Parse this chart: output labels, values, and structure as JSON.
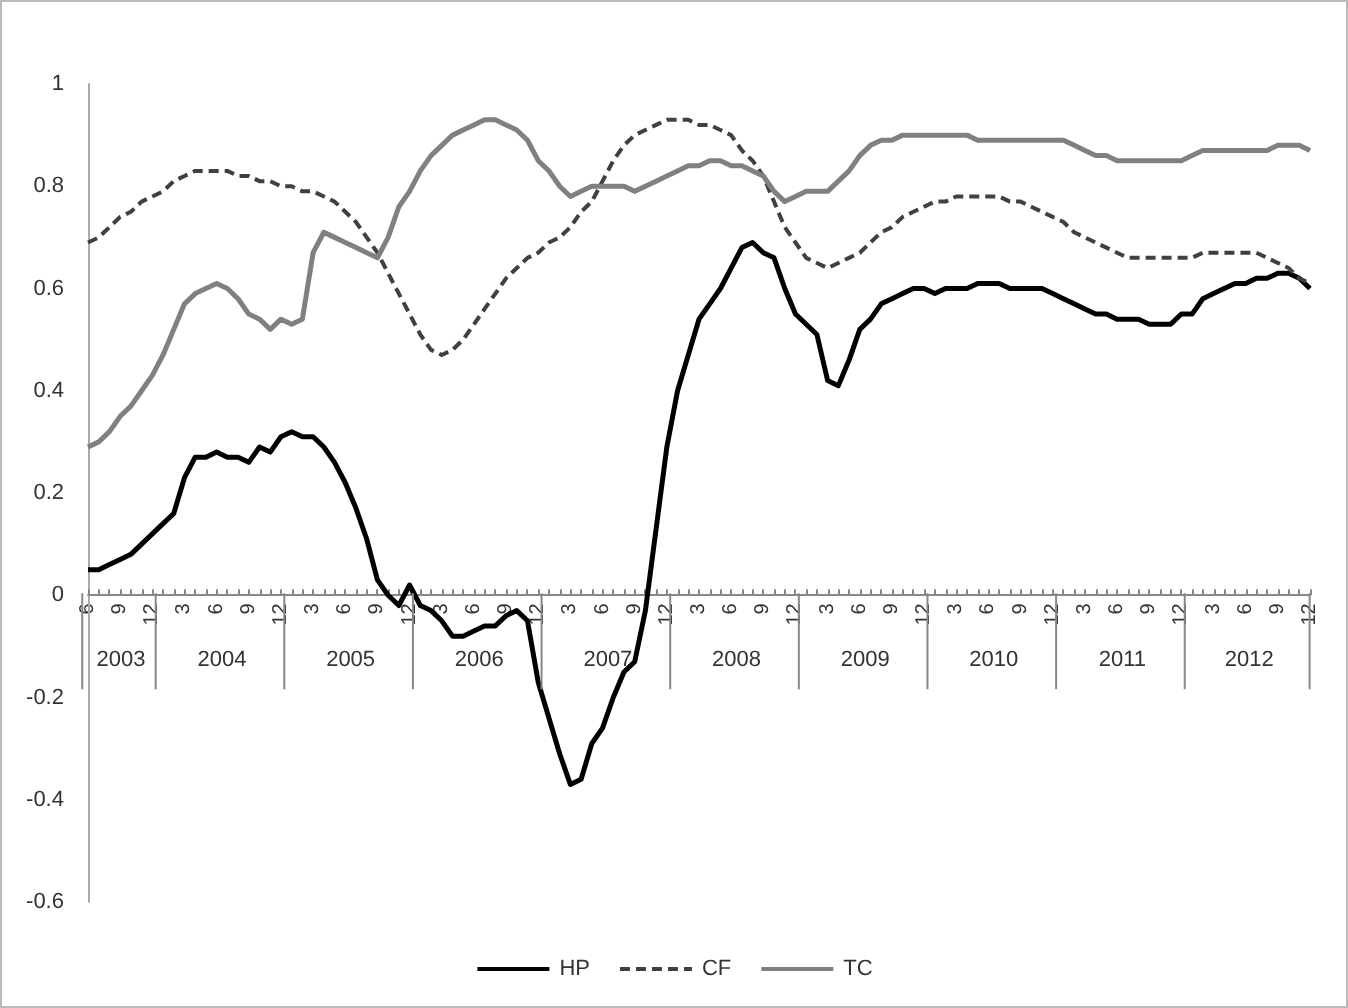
{
  "chart_data": {
    "type": "line",
    "x": [
      "2003-06",
      "2003-07",
      "2003-08",
      "2003-09",
      "2003-10",
      "2003-11",
      "2003-12",
      "2004-01",
      "2004-02",
      "2004-03",
      "2004-04",
      "2004-05",
      "2004-06",
      "2004-07",
      "2004-08",
      "2004-09",
      "2004-10",
      "2004-11",
      "2004-12",
      "2005-01",
      "2005-02",
      "2005-03",
      "2005-04",
      "2005-05",
      "2005-06",
      "2005-07",
      "2005-08",
      "2005-09",
      "2005-10",
      "2005-11",
      "2005-12",
      "2006-01",
      "2006-02",
      "2006-03",
      "2006-04",
      "2006-05",
      "2006-06",
      "2006-07",
      "2006-08",
      "2006-09",
      "2006-10",
      "2006-11",
      "2006-12",
      "2007-01",
      "2007-02",
      "2007-03",
      "2007-04",
      "2007-05",
      "2007-06",
      "2007-07",
      "2007-08",
      "2007-09",
      "2007-10",
      "2007-11",
      "2007-12",
      "2008-01",
      "2008-02",
      "2008-03",
      "2008-04",
      "2008-05",
      "2008-06",
      "2008-07",
      "2008-08",
      "2008-09",
      "2008-10",
      "2008-11",
      "2008-12",
      "2009-01",
      "2009-02",
      "2009-03",
      "2009-04",
      "2009-05",
      "2009-06",
      "2009-07",
      "2009-08",
      "2009-09",
      "2009-10",
      "2009-11",
      "2009-12",
      "2010-01",
      "2010-02",
      "2010-03",
      "2010-04",
      "2010-05",
      "2010-06",
      "2010-07",
      "2010-08",
      "2010-09",
      "2010-10",
      "2010-11",
      "2010-12",
      "2011-01",
      "2011-02",
      "2011-03",
      "2011-04",
      "2011-05",
      "2011-06",
      "2011-07",
      "2011-08",
      "2011-09",
      "2011-10",
      "2011-11",
      "2011-12",
      "2012-01",
      "2012-02",
      "2012-03",
      "2012-04",
      "2012-05",
      "2012-06",
      "2012-07",
      "2012-08",
      "2012-09",
      "2012-10",
      "2012-11",
      "2012-12"
    ],
    "xticks": [
      {
        "value": "2003-06",
        "label": "6"
      },
      {
        "value": "2003-07",
        "label": null
      },
      {
        "value": "2003-08",
        "label": null
      },
      {
        "value": "2003-09",
        "label": "9"
      },
      {
        "value": "2003-10",
        "label": null
      },
      {
        "value": "2003-11",
        "label": null
      },
      {
        "value": "2003-12",
        "label": "12"
      },
      {
        "value": "2004-01",
        "label": null
      },
      {
        "value": "2004-02",
        "label": null
      },
      {
        "value": "2004-03",
        "label": "3"
      },
      {
        "value": "2004-04",
        "label": null
      },
      {
        "value": "2004-05",
        "label": null
      },
      {
        "value": "2004-06",
        "label": "6"
      },
      {
        "value": "2004-07",
        "label": null
      },
      {
        "value": "2004-08",
        "label": null
      },
      {
        "value": "2004-09",
        "label": "9"
      },
      {
        "value": "2004-10",
        "label": null
      },
      {
        "value": "2004-11",
        "label": null
      },
      {
        "value": "2004-12",
        "label": "12"
      },
      {
        "value": "2005-01",
        "label": null
      },
      {
        "value": "2005-02",
        "label": null
      },
      {
        "value": "2005-03",
        "label": "3"
      },
      {
        "value": "2005-04",
        "label": null
      },
      {
        "value": "2005-05",
        "label": null
      },
      {
        "value": "2005-06",
        "label": "6"
      },
      {
        "value": "2005-07",
        "label": null
      },
      {
        "value": "2005-08",
        "label": null
      },
      {
        "value": "2005-09",
        "label": "9"
      },
      {
        "value": "2005-10",
        "label": null
      },
      {
        "value": "2005-11",
        "label": null
      },
      {
        "value": "2005-12",
        "label": "12"
      },
      {
        "value": "2006-01",
        "label": null
      },
      {
        "value": "2006-02",
        "label": null
      },
      {
        "value": "2006-03",
        "label": "3"
      },
      {
        "value": "2006-04",
        "label": null
      },
      {
        "value": "2006-05",
        "label": null
      },
      {
        "value": "2006-06",
        "label": "6"
      },
      {
        "value": "2006-07",
        "label": null
      },
      {
        "value": "2006-08",
        "label": null
      },
      {
        "value": "2006-09",
        "label": "9"
      },
      {
        "value": "2006-10",
        "label": null
      },
      {
        "value": "2006-11",
        "label": null
      },
      {
        "value": "2006-12",
        "label": "12"
      },
      {
        "value": "2007-01",
        "label": null
      },
      {
        "value": "2007-02",
        "label": null
      },
      {
        "value": "2007-03",
        "label": "3"
      },
      {
        "value": "2007-04",
        "label": null
      },
      {
        "value": "2007-05",
        "label": null
      },
      {
        "value": "2007-06",
        "label": "6"
      },
      {
        "value": "2007-07",
        "label": null
      },
      {
        "value": "2007-08",
        "label": null
      },
      {
        "value": "2007-09",
        "label": "9"
      },
      {
        "value": "2007-10",
        "label": null
      },
      {
        "value": "2007-11",
        "label": null
      },
      {
        "value": "2007-12",
        "label": "12"
      },
      {
        "value": "2008-01",
        "label": null
      },
      {
        "value": "2008-02",
        "label": null
      },
      {
        "value": "2008-03",
        "label": "3"
      },
      {
        "value": "2008-04",
        "label": null
      },
      {
        "value": "2008-05",
        "label": null
      },
      {
        "value": "2008-06",
        "label": "6"
      },
      {
        "value": "2008-07",
        "label": null
      },
      {
        "value": "2008-08",
        "label": null
      },
      {
        "value": "2008-09",
        "label": "9"
      },
      {
        "value": "2008-10",
        "label": null
      },
      {
        "value": "2008-11",
        "label": null
      },
      {
        "value": "2008-12",
        "label": "12"
      },
      {
        "value": "2009-01",
        "label": null
      },
      {
        "value": "2009-02",
        "label": null
      },
      {
        "value": "2009-03",
        "label": "3"
      },
      {
        "value": "2009-04",
        "label": null
      },
      {
        "value": "2009-05",
        "label": null
      },
      {
        "value": "2009-06",
        "label": "6"
      },
      {
        "value": "2009-07",
        "label": null
      },
      {
        "value": "2009-08",
        "label": null
      },
      {
        "value": "2009-09",
        "label": "9"
      },
      {
        "value": "2009-10",
        "label": null
      },
      {
        "value": "2009-11",
        "label": null
      },
      {
        "value": "2009-12",
        "label": "12"
      },
      {
        "value": "2010-01",
        "label": null
      },
      {
        "value": "2010-02",
        "label": null
      },
      {
        "value": "2010-03",
        "label": "3"
      },
      {
        "value": "2010-04",
        "label": null
      },
      {
        "value": "2010-05",
        "label": null
      },
      {
        "value": "2010-06",
        "label": "6"
      },
      {
        "value": "2010-07",
        "label": null
      },
      {
        "value": "2010-08",
        "label": null
      },
      {
        "value": "2010-09",
        "label": "9"
      },
      {
        "value": "2010-10",
        "label": null
      },
      {
        "value": "2010-11",
        "label": null
      },
      {
        "value": "2010-12",
        "label": "12"
      },
      {
        "value": "2011-01",
        "label": null
      },
      {
        "value": "2011-02",
        "label": null
      },
      {
        "value": "2011-03",
        "label": "3"
      },
      {
        "value": "2011-04",
        "label": null
      },
      {
        "value": "2011-05",
        "label": null
      },
      {
        "value": "2011-06",
        "label": "6"
      },
      {
        "value": "2011-07",
        "label": null
      },
      {
        "value": "2011-08",
        "label": null
      },
      {
        "value": "2011-09",
        "label": "9"
      },
      {
        "value": "2011-10",
        "label": null
      },
      {
        "value": "2011-11",
        "label": null
      },
      {
        "value": "2011-12",
        "label": "12"
      },
      {
        "value": "2012-01",
        "label": null
      },
      {
        "value": "2012-02",
        "label": null
      },
      {
        "value": "2012-03",
        "label": "3"
      },
      {
        "value": "2012-04",
        "label": null
      },
      {
        "value": "2012-05",
        "label": null
      },
      {
        "value": "2012-06",
        "label": "6"
      },
      {
        "value": "2012-07",
        "label": null
      },
      {
        "value": "2012-08",
        "label": null
      },
      {
        "value": "2012-09",
        "label": "9"
      },
      {
        "value": "2012-10",
        "label": null
      },
      {
        "value": "2012-11",
        "label": null
      },
      {
        "value": "2012-12",
        "label": "12"
      }
    ],
    "xlim": [
      "2003-06",
      "2012-12"
    ],
    "ylim": [
      -0.6,
      1
    ],
    "yticks": [
      -0.6,
      -0.4,
      -0.2,
      0,
      0.2,
      0.4,
      0.6,
      0.8,
      1
    ],
    "annotations": [
      "2003",
      "2004",
      "2005",
      "2006",
      "2007",
      "2008",
      "2009",
      "2010",
      "2011",
      "2012"
    ],
    "legend": "bottom",
    "series": [
      {
        "name": "HP",
        "color": "#000000",
        "line_style": "solid",
        "values": [
          0.05,
          0.05,
          0.06,
          0.07,
          0.08,
          0.1,
          0.12,
          0.14,
          0.16,
          0.23,
          0.27,
          0.27,
          0.28,
          0.27,
          0.27,
          0.26,
          0.29,
          0.28,
          0.31,
          0.32,
          0.31,
          0.31,
          0.29,
          0.26,
          0.22,
          0.17,
          0.11,
          0.03,
          0,
          -0.02,
          0.02,
          -0.02,
          -0.03,
          -0.05,
          -0.08,
          -0.08,
          -0.07,
          -0.06,
          -0.06,
          -0.04,
          -0.03,
          -0.05,
          -0.17,
          -0.24,
          -0.31,
          -0.37,
          -0.36,
          -0.29,
          -0.26,
          -0.2,
          -0.15,
          -0.13,
          -0.03,
          0.13,
          0.29,
          0.4,
          0.47,
          0.54,
          0.57,
          0.6,
          0.64,
          0.68,
          0.69,
          0.67,
          0.66,
          0.6,
          0.55,
          0.53,
          0.51,
          0.42,
          0.41,
          0.46,
          0.52,
          0.54,
          0.57,
          0.58,
          0.59,
          0.6,
          0.6,
          0.59,
          0.6,
          0.6,
          0.6,
          0.61,
          0.61,
          0.61,
          0.6,
          0.6,
          0.6,
          0.6,
          0.59,
          0.58,
          0.57,
          0.56,
          0.55,
          0.55,
          0.54,
          0.54,
          0.54,
          0.53,
          0.53,
          0.53,
          0.55,
          0.55,
          0.58,
          0.59,
          0.6,
          0.61,
          0.61,
          0.62,
          0.62,
          0.63,
          0.63,
          0.62,
          0.6
        ]
      },
      {
        "name": "CF",
        "color": "#404040",
        "line_style": "dashed",
        "values": [
          0.69,
          0.7,
          0.72,
          0.74,
          0.75,
          0.77,
          0.78,
          0.79,
          0.81,
          0.82,
          0.83,
          0.83,
          0.83,
          0.83,
          0.82,
          0.82,
          0.81,
          0.81,
          0.8,
          0.8,
          0.79,
          0.79,
          0.78,
          0.77,
          0.75,
          0.73,
          0.7,
          0.67,
          0.63,
          0.59,
          0.55,
          0.51,
          0.48,
          0.47,
          0.48,
          0.5,
          0.53,
          0.56,
          0.59,
          0.62,
          0.64,
          0.66,
          0.67,
          0.69,
          0.7,
          0.72,
          0.75,
          0.77,
          0.81,
          0.85,
          0.88,
          0.9,
          0.91,
          0.92,
          0.93,
          0.93,
          0.93,
          0.92,
          0.92,
          0.91,
          0.9,
          0.87,
          0.85,
          0.82,
          0.77,
          0.72,
          0.69,
          0.66,
          0.65,
          0.64,
          0.65,
          0.66,
          0.67,
          0.69,
          0.71,
          0.72,
          0.74,
          0.75,
          0.76,
          0.77,
          0.77,
          0.78,
          0.78,
          0.78,
          0.78,
          0.78,
          0.77,
          0.77,
          0.76,
          0.75,
          0.74,
          0.73,
          0.71,
          0.7,
          0.69,
          0.68,
          0.67,
          0.66,
          0.66,
          0.66,
          0.66,
          0.66,
          0.66,
          0.66,
          0.67,
          0.67,
          0.67,
          0.67,
          0.67,
          0.67,
          0.66,
          0.65,
          0.64,
          0.62,
          0.61
        ]
      },
      {
        "name": "TC",
        "color": "#808080",
        "line_style": "solid",
        "values": [
          0.29,
          0.3,
          0.32,
          0.35,
          0.37,
          0.4,
          0.43,
          0.47,
          0.52,
          0.57,
          0.59,
          0.6,
          0.61,
          0.6,
          0.58,
          0.55,
          0.54,
          0.52,
          0.54,
          0.53,
          0.54,
          0.67,
          0.71,
          0.7,
          0.69,
          0.68,
          0.67,
          0.66,
          0.7,
          0.76,
          0.79,
          0.83,
          0.86,
          0.88,
          0.9,
          0.91,
          0.92,
          0.93,
          0.93,
          0.92,
          0.91,
          0.89,
          0.85,
          0.83,
          0.8,
          0.78,
          0.79,
          0.8,
          0.8,
          0.8,
          0.8,
          0.79,
          0.8,
          0.81,
          0.82,
          0.83,
          0.84,
          0.84,
          0.85,
          0.85,
          0.84,
          0.84,
          0.83,
          0.82,
          0.79,
          0.77,
          0.78,
          0.79,
          0.79,
          0.79,
          0.81,
          0.83,
          0.86,
          0.88,
          0.89,
          0.89,
          0.9,
          0.9,
          0.9,
          0.9,
          0.9,
          0.9,
          0.9,
          0.89,
          0.89,
          0.89,
          0.89,
          0.89,
          0.89,
          0.89,
          0.89,
          0.89,
          0.88,
          0.87,
          0.86,
          0.86,
          0.85,
          0.85,
          0.85,
          0.85,
          0.85,
          0.85,
          0.85,
          0.86,
          0.87,
          0.87,
          0.87,
          0.87,
          0.87,
          0.87,
          0.87,
          0.88,
          0.88,
          0.88,
          0.87
        ]
      }
    ]
  }
}
